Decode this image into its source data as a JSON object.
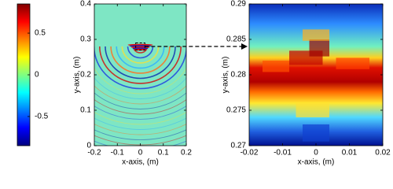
{
  "chart_data": [
    {
      "type": "heatmap",
      "xlabel": "x-axis, (m)",
      "ylabel": "y-axis, (m)",
      "xlim": [
        -0.2,
        0.2
      ],
      "xticks": [
        -0.2,
        -0.1,
        0,
        0.1,
        0.2
      ],
      "ylim": [
        0,
        0.4
      ],
      "yticks": [
        0,
        0.1,
        0.2,
        0.3,
        0.4
      ],
      "colormap": "jet",
      "colorbar": {
        "lim": [
          -0.85,
          0.85
        ],
        "ticks": [
          -0.5,
          0,
          0.5
        ]
      }
    },
    {
      "type": "heatmap",
      "xlabel": "x-axis, (m)",
      "ylabel": "y-axis, (m)",
      "xlim": [
        -0.02,
        0.02
      ],
      "xticks": [
        -0.02,
        -0.01,
        0,
        0.01,
        0.02
      ],
      "ylim": [
        0.27,
        0.29
      ],
      "yticks": [
        0.27,
        0.275,
        0.28,
        0.285,
        0.29
      ],
      "colormap": "jet"
    }
  ]
}
